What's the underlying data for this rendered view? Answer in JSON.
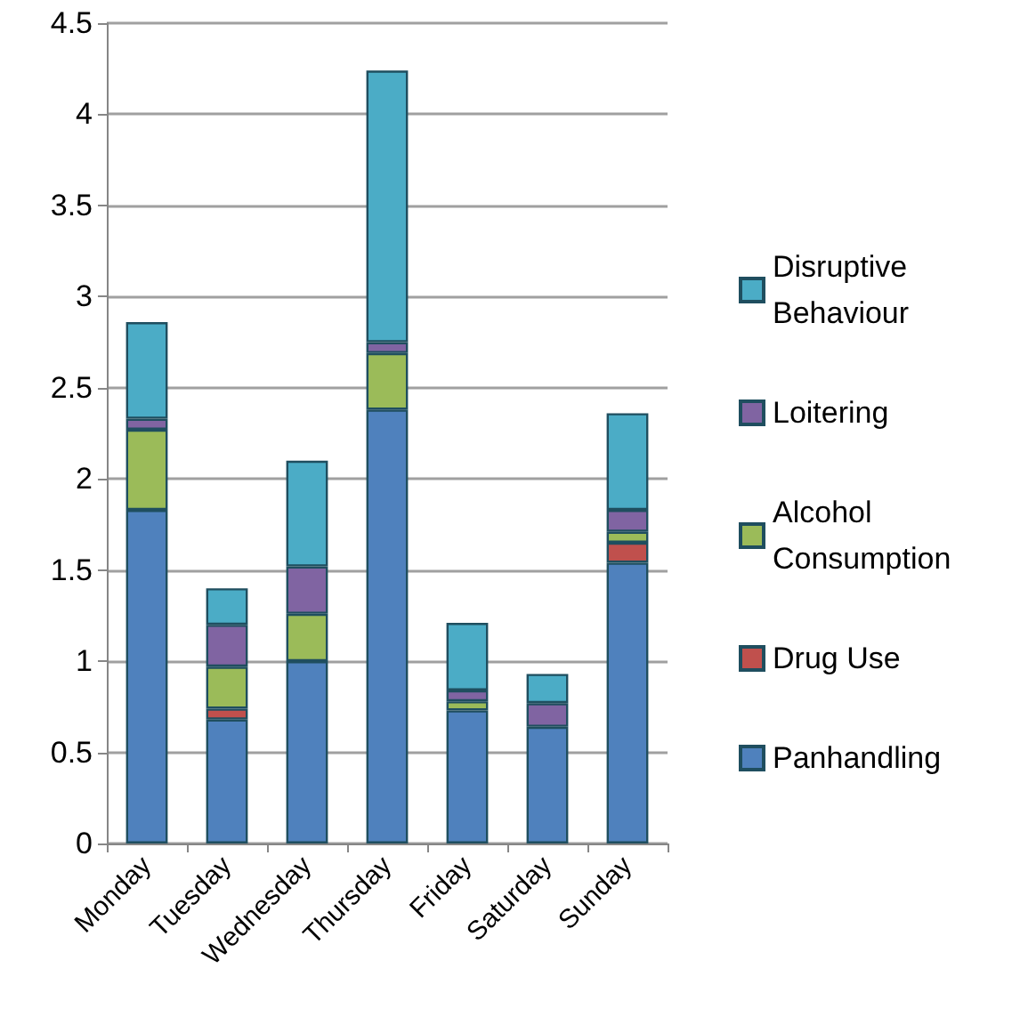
{
  "chart_data": {
    "type": "bar",
    "stacked": true,
    "categories": [
      "Monday",
      "Tuesday",
      "Wednesday",
      "Thursday",
      "Friday",
      "Saturday",
      "Sunday"
    ],
    "series": [
      {
        "name": "Panhandling",
        "color": "#4f81bd",
        "values": [
          1.83,
          0.68,
          1.0,
          2.38,
          0.73,
          0.64,
          1.54
        ]
      },
      {
        "name": "Drug Use",
        "color": "#c0504d",
        "values": [
          0,
          0.06,
          0,
          0,
          0,
          0,
          0.11
        ]
      },
      {
        "name": "Alcohol Consumption",
        "color": "#9bbb59",
        "values": [
          0.44,
          0.23,
          0.26,
          0.31,
          0.05,
          0,
          0.06
        ]
      },
      {
        "name": "Loitering",
        "color": "#8064a2",
        "values": [
          0.06,
          0.23,
          0.26,
          0.06,
          0.06,
          0.13,
          0.12
        ]
      },
      {
        "name": "Disruptive Behaviour",
        "color": "#4bacc6",
        "values": [
          0.53,
          0.2,
          0.58,
          1.49,
          0.37,
          0.16,
          0.53
        ]
      }
    ],
    "ylim": [
      0,
      4.5
    ],
    "yticks": [
      0,
      0.5,
      1,
      1.5,
      2,
      2.5,
      3,
      3.5,
      4,
      4.5
    ],
    "grid": "y",
    "legend": "right"
  }
}
